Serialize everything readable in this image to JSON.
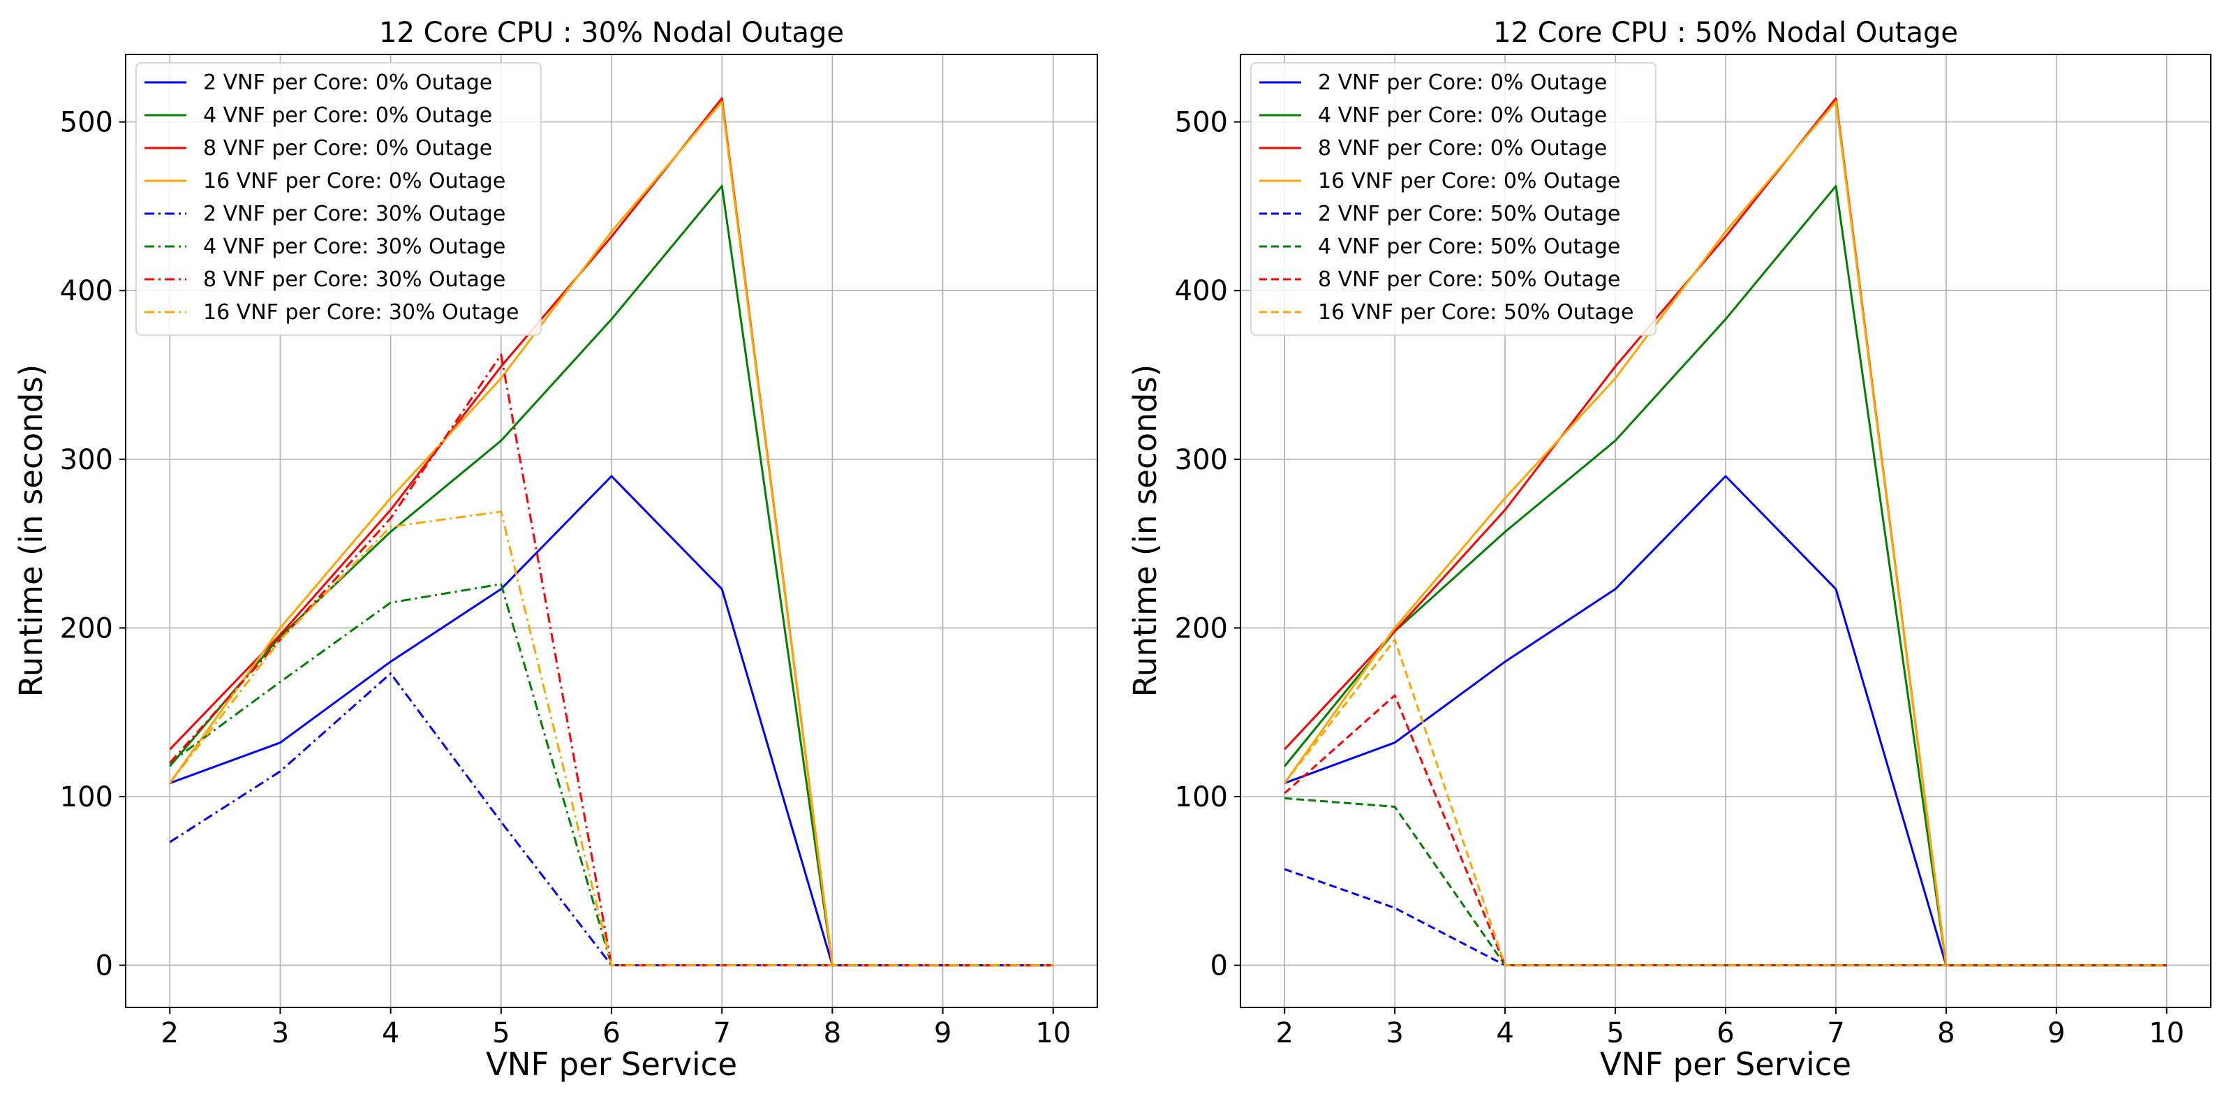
{
  "chart_data": [
    {
      "type": "line",
      "title": "12 Core CPU : 30% Nodal Outage",
      "xlabel": "VNF per Service",
      "ylabel": "Runtime (in seconds)",
      "x": [
        2,
        3,
        4,
        5,
        6,
        7,
        8,
        9,
        10
      ],
      "xlim": [
        1.6,
        10.4
      ],
      "ylim": [
        -25,
        540
      ],
      "xticks": [
        2,
        3,
        4,
        5,
        6,
        7,
        8,
        9,
        10
      ],
      "yticks": [
        0,
        100,
        200,
        300,
        400,
        500
      ],
      "grid": true,
      "legend_position": "upper-left",
      "series": [
        {
          "name": "2 VNF per Core: 0% Outage",
          "color": "#0000ff",
          "style": "solid",
          "values": [
            108,
            132,
            180,
            223,
            290,
            223,
            0,
            0,
            0
          ]
        },
        {
          "name": "4 VNF per Core: 0% Outage",
          "color": "#008000",
          "style": "solid",
          "values": [
            118,
            195,
            257,
            311,
            383,
            462,
            0,
            0,
            0
          ]
        },
        {
          "name": "8 VNF per Core: 0% Outage",
          "color": "#ff0000",
          "style": "solid",
          "values": [
            128,
            196,
            270,
            355,
            432,
            514,
            0,
            0,
            0
          ]
        },
        {
          "name": "16 VNF per Core: 0% Outage",
          "color": "#ffa500",
          "style": "solid",
          "values": [
            108,
            200,
            277,
            348,
            435,
            512,
            0,
            0,
            0
          ]
        },
        {
          "name": "2 VNF per Core: 30% Outage",
          "color": "#0000ff",
          "style": "dashdot",
          "values": [
            73,
            115,
            173,
            85,
            0,
            0,
            0,
            0,
            0
          ]
        },
        {
          "name": "4 VNF per Core: 30% Outage",
          "color": "#008000",
          "style": "dashdot",
          "values": [
            120,
            168,
            215,
            226,
            0,
            0,
            0,
            0,
            0
          ]
        },
        {
          "name": "8 VNF per Core: 30% Outage",
          "color": "#ff0000",
          "style": "dashdot",
          "values": [
            120,
            193,
            265,
            362,
            0,
            0,
            0,
            0,
            0
          ]
        },
        {
          "name": "16 VNF per Core: 30% Outage",
          "color": "#ffa500",
          "style": "dashdot",
          "values": [
            108,
            193,
            260,
            269,
            0,
            0,
            0,
            0,
            0
          ]
        }
      ]
    },
    {
      "type": "line",
      "title": "12 Core CPU : 50% Nodal Outage",
      "xlabel": "VNF per Service",
      "ylabel": "Runtime (in seconds)",
      "x": [
        2,
        3,
        4,
        5,
        6,
        7,
        8,
        9,
        10
      ],
      "xlim": [
        1.6,
        10.4
      ],
      "ylim": [
        -25,
        540
      ],
      "xticks": [
        2,
        3,
        4,
        5,
        6,
        7,
        8,
        9,
        10
      ],
      "yticks": [
        0,
        100,
        200,
        300,
        400,
        500
      ],
      "grid": true,
      "legend_position": "upper-left",
      "series": [
        {
          "name": "2 VNF per Core: 0% Outage",
          "color": "#0000ff",
          "style": "solid",
          "values": [
            108,
            132,
            180,
            223,
            290,
            223,
            0,
            0,
            0
          ]
        },
        {
          "name": "4 VNF per Core: 0% Outage",
          "color": "#008000",
          "style": "solid",
          "values": [
            118,
            198,
            257,
            311,
            383,
            462,
            0,
            0,
            0
          ]
        },
        {
          "name": "8 VNF per Core: 0% Outage",
          "color": "#ff0000",
          "style": "solid",
          "values": [
            128,
            198,
            270,
            355,
            432,
            514,
            0,
            0,
            0
          ]
        },
        {
          "name": "16 VNF per Core: 0% Outage",
          "color": "#ffa500",
          "style": "solid",
          "values": [
            108,
            200,
            277,
            348,
            435,
            512,
            0,
            0,
            0
          ]
        },
        {
          "name": "2 VNF per Core: 50% Outage",
          "color": "#0000ff",
          "style": "dashed",
          "values": [
            57,
            34,
            0,
            0,
            0,
            0,
            0,
            0,
            0
          ]
        },
        {
          "name": "4 VNF per Core: 50% Outage",
          "color": "#008000",
          "style": "dashed",
          "values": [
            99,
            94,
            0,
            0,
            0,
            0,
            0,
            0,
            0
          ]
        },
        {
          "name": "8 VNF per Core: 50% Outage",
          "color": "#ff0000",
          "style": "dashed",
          "values": [
            102,
            160,
            0,
            0,
            0,
            0,
            0,
            0,
            0
          ]
        },
        {
          "name": "16 VNF per Core: 50% Outage",
          "color": "#ffa500",
          "style": "dashed",
          "values": [
            108,
            193,
            0,
            0,
            0,
            0,
            0,
            0,
            0
          ]
        }
      ]
    }
  ]
}
